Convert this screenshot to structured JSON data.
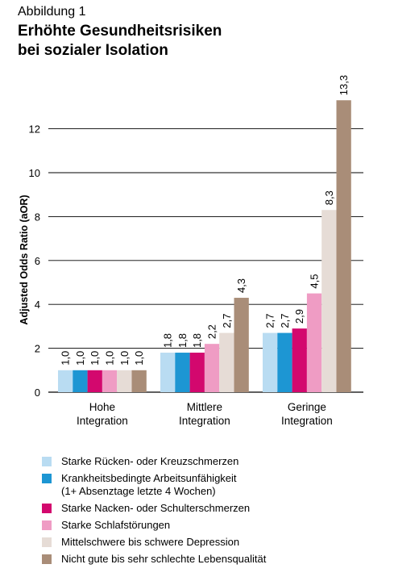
{
  "figure_label": "Abbildung 1",
  "title_lines": [
    "Erhöhte Gesundheitsrisiken",
    "bei sozialer Isolation"
  ],
  "chart_data": {
    "type": "bar",
    "ylabel": "Adjusted Odds Ratio (aOR)",
    "ylim": [
      0,
      14
    ],
    "yticks": [
      0,
      2,
      4,
      6,
      8,
      10,
      12
    ],
    "grid": true,
    "legend_position": "bottom",
    "categories": [
      [
        "Hohe",
        "Integration"
      ],
      [
        "Mittlere",
        "Integration"
      ],
      [
        "Geringe",
        "Integration"
      ]
    ],
    "series": [
      {
        "name": "Starke Rücken- oder Kreuzschmerzen",
        "color": "#b9dcf2",
        "values": [
          1.0,
          1.8,
          2.7
        ],
        "labels": [
          "1,0",
          "1,8",
          "2,7"
        ]
      },
      {
        "name": "Krankheitsbedingte Arbeitsunfähigkeit\n(1+ Absenztage letzte 4 Wochen)",
        "color": "#1d96d3",
        "values": [
          1.0,
          1.8,
          2.7
        ],
        "labels": [
          "1,0",
          "1,8",
          "2,7"
        ]
      },
      {
        "name": "Starke Nacken- oder Schulterschmerzen",
        "color": "#d3086e",
        "values": [
          1.0,
          1.8,
          2.9
        ],
        "labels": [
          "1,0",
          "1,8",
          "2,9"
        ]
      },
      {
        "name": "Starke Schlafstörungen",
        "color": "#ef9cc4",
        "values": [
          1.0,
          2.2,
          4.5
        ],
        "labels": [
          "1,0",
          "2,2",
          "4,5"
        ]
      },
      {
        "name": "Mittelschwere bis schwere Depression",
        "color": "#e6dcd6",
        "values": [
          1.0,
          2.7,
          8.3
        ],
        "labels": [
          "1,0",
          "2,7",
          "8,3"
        ]
      },
      {
        "name": "Nicht gute bis sehr schlechte Lebensqualität",
        "color": "#a98d78",
        "values": [
          1.0,
          4.3,
          13.3
        ],
        "labels": [
          "1,0",
          "4,3",
          "13,3"
        ]
      }
    ]
  }
}
